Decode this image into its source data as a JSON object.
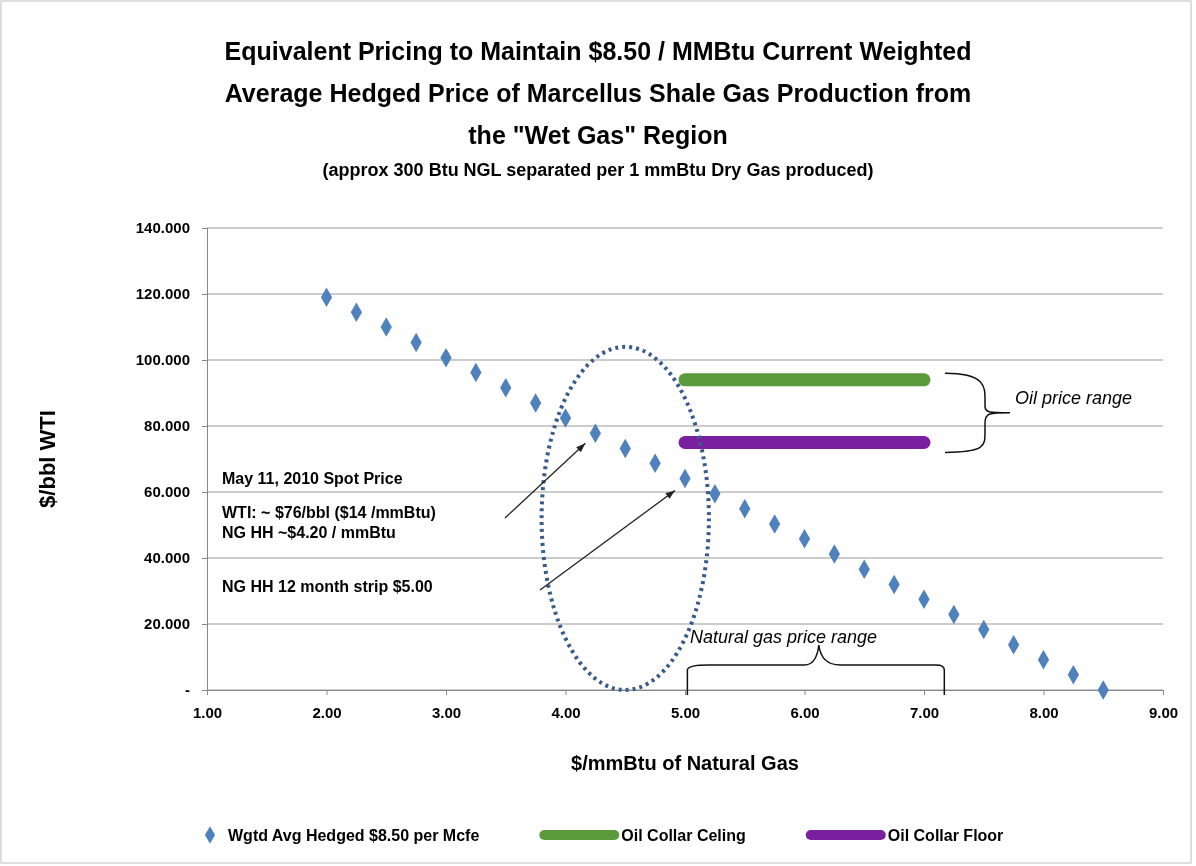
{
  "chart_data": {
    "type": "scatter",
    "title": "Equivalent Pricing to Maintain $8.50 / MMBtu Current Weighted Average Hedged Price of Marcellus Shale Gas Production from the \"Wet Gas\" Region",
    "subtitle": "(approx 300 Btu NGL separated per 1 mmBtu Dry Gas produced)",
    "xlabel": "$/mmBtu of Natural Gas",
    "ylabel": "$/bbl WTI",
    "xlim": [
      1,
      9
    ],
    "xticks": [
      {
        "value": 1,
        "label": "1.00"
      },
      {
        "value": 2,
        "label": "2.00"
      },
      {
        "value": 3,
        "label": "3.00"
      },
      {
        "value": 4,
        "label": "4.00"
      },
      {
        "value": 5,
        "label": "5.00"
      },
      {
        "value": 6,
        "label": "6.00"
      },
      {
        "value": 7,
        "label": "7.00"
      },
      {
        "value": 8,
        "label": "8.00"
      },
      {
        "value": 9,
        "label": "9.00"
      }
    ],
    "ylim": [
      0,
      140
    ],
    "yticks": [
      {
        "value": 0,
        "label": "-"
      },
      {
        "value": 20,
        "label": "20.000"
      },
      {
        "value": 40,
        "label": "40.000"
      },
      {
        "value": 60,
        "label": "60.000"
      },
      {
        "value": 80,
        "label": "80.000"
      },
      {
        "value": 100,
        "label": "100.000"
      },
      {
        "value": 120,
        "label": "120.000"
      },
      {
        "value": 140,
        "label": "140.000"
      }
    ],
    "grid": "y",
    "legend": "bottom",
    "series": [
      {
        "name": "Wgtd Avg Hedged $8.50 per Mcfe",
        "marker": "diamond",
        "color": "#4f81bd",
        "x": [
          2,
          2.25,
          2.5,
          2.75,
          3,
          3.25,
          3.5,
          3.75,
          4,
          4.25,
          4.5,
          4.75,
          5,
          5.25,
          5.5,
          5.75,
          6,
          6.25,
          6.5,
          6.75,
          7,
          7.25,
          7.5,
          7.75,
          8,
          8.25,
          8.5
        ],
        "values": [
          119,
          114.5,
          110,
          105.3,
          100.7,
          96.2,
          91.6,
          87,
          82.4,
          77.8,
          73.2,
          68.7,
          64.1,
          59.5,
          54.9,
          50.3,
          45.8,
          41.2,
          36.6,
          32,
          27.5,
          22.9,
          18.3,
          13.7,
          9.2,
          4.6,
          0
        ]
      },
      {
        "name": "Oil Collar Celing",
        "type": "line",
        "marker": "none",
        "color": "#5b9a3c",
        "x": [
          5,
          7
        ],
        "values": [
          94,
          94
        ]
      },
      {
        "name": "Oil Collar Floor",
        "type": "line",
        "marker": "none",
        "color": "#7a1fa0",
        "x": [
          5,
          7
        ],
        "values": [
          75,
          75
        ]
      }
    ],
    "annotations": [
      "May 11, 2010 Spot Price",
      "WTI: ~ $76/bbl  ($14 /mmBtu)",
      "NG HH ~$4.20 / mmBtu",
      "NG HH 12 month strip $5.00",
      "Oil  price range",
      "Natural gas price range"
    ]
  }
}
